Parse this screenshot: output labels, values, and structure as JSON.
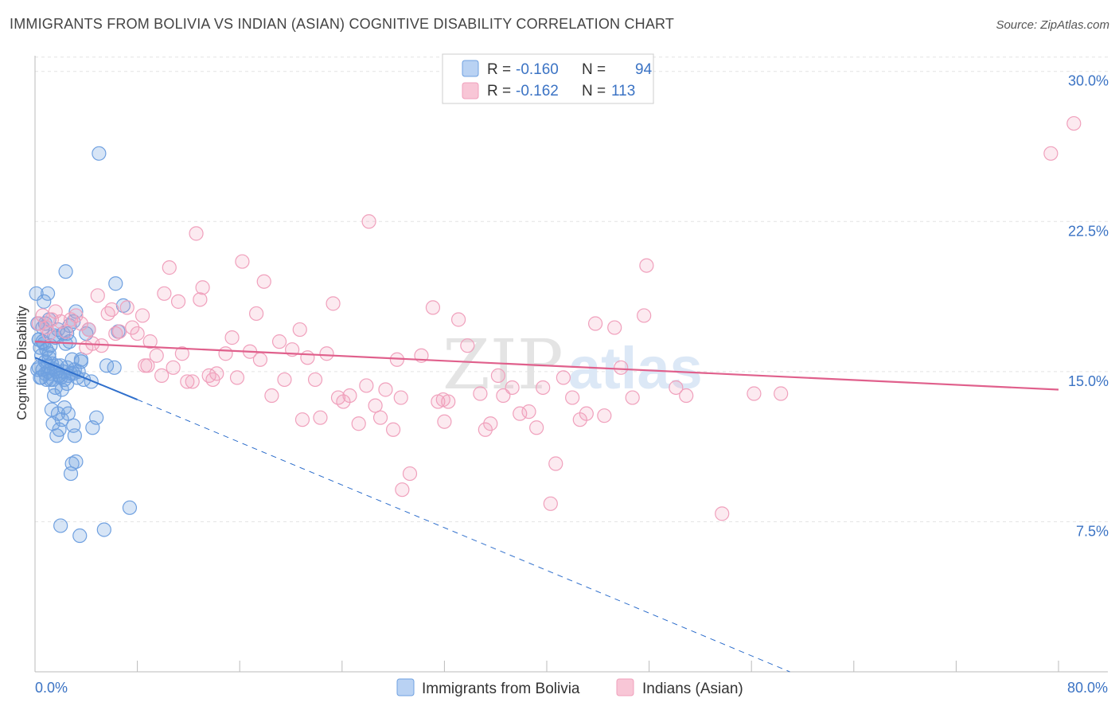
{
  "title": "IMMIGRANTS FROM BOLIVIA VS INDIAN (ASIAN) COGNITIVE DISABILITY CORRELATION CHART",
  "source": "Source: ZipAtlas.com",
  "watermark": {
    "zip": "ZIP",
    "atlas": "atlas"
  },
  "chart_data": {
    "type": "scatter",
    "xlabel": "",
    "ylabel": "Cognitive Disability",
    "xlim": [
      0,
      80
    ],
    "ylim": [
      0,
      31.5
    ],
    "x_tick_labels": [
      "0.0%",
      "80.0%"
    ],
    "y_ticks": [
      7.5,
      15.0,
      22.5,
      30.0
    ],
    "y_tick_labels": [
      "7.5%",
      "15.0%",
      "22.5%",
      "30.0%"
    ],
    "legend": {
      "r_label": "R =",
      "n_label": "N =",
      "entries": [
        {
          "r": "-0.160",
          "n": "94"
        },
        {
          "r": "-0.162",
          "n": "113"
        }
      ]
    },
    "series": [
      {
        "name": "Immigrants from Bolivia",
        "color": "#6fa0e0",
        "line_color": "#2f6fcc",
        "trend": {
          "x0": 0,
          "y0": 15.7,
          "x1": 8,
          "y1": 13.6,
          "dash_x1": 59,
          "dash_y1": 0
        },
        "points": [
          [
            0.1,
            18.9
          ],
          [
            0.2,
            17.4
          ],
          [
            0.3,
            16.6
          ],
          [
            0.3,
            15.2
          ],
          [
            0.4,
            16.2
          ],
          [
            0.5,
            15.8
          ],
          [
            0.5,
            14.7
          ],
          [
            0.6,
            17.2
          ],
          [
            0.6,
            15.1
          ],
          [
            0.7,
            18.5
          ],
          [
            0.7,
            16.4
          ],
          [
            0.8,
            15.5
          ],
          [
            0.8,
            14.9
          ],
          [
            0.9,
            16.1
          ],
          [
            0.9,
            14.6
          ],
          [
            1.0,
            18.9
          ],
          [
            1.0,
            15.3
          ],
          [
            1.1,
            17.6
          ],
          [
            1.1,
            15.7
          ],
          [
            1.2,
            16.3
          ],
          [
            1.2,
            14.9
          ],
          [
            1.3,
            15.4
          ],
          [
            1.3,
            13.1
          ],
          [
            1.4,
            14.6
          ],
          [
            1.4,
            12.4
          ],
          [
            1.5,
            15.1
          ],
          [
            1.5,
            13.8
          ],
          [
            1.6,
            16.7
          ],
          [
            1.6,
            14.2
          ],
          [
            1.7,
            15.0
          ],
          [
            1.7,
            11.8
          ],
          [
            1.8,
            17.1
          ],
          [
            1.8,
            12.9
          ],
          [
            1.9,
            14.8
          ],
          [
            1.9,
            12.1
          ],
          [
            2.0,
            15.3
          ],
          [
            2.0,
            7.3
          ],
          [
            2.1,
            14.1
          ],
          [
            2.1,
            12.6
          ],
          [
            2.2,
            16.9
          ],
          [
            2.2,
            15.0
          ],
          [
            2.3,
            13.2
          ],
          [
            2.3,
            14.6
          ],
          [
            2.4,
            20.0
          ],
          [
            2.4,
            16.4
          ],
          [
            2.5,
            15.2
          ],
          [
            2.5,
            14.4
          ],
          [
            2.6,
            14.8
          ],
          [
            2.6,
            12.9
          ],
          [
            2.7,
            17.3
          ],
          [
            2.7,
            16.5
          ],
          [
            2.8,
            14.9
          ],
          [
            2.8,
            9.9
          ],
          [
            2.9,
            15.6
          ],
          [
            2.9,
            10.4
          ],
          [
            3.0,
            17.5
          ],
          [
            3.0,
            12.3
          ],
          [
            3.1,
            15.1
          ],
          [
            3.1,
            11.8
          ],
          [
            3.2,
            18.0
          ],
          [
            3.2,
            10.5
          ],
          [
            3.3,
            14.7
          ],
          [
            3.4,
            15.0
          ],
          [
            3.5,
            6.8
          ],
          [
            3.6,
            15.5
          ],
          [
            3.8,
            14.6
          ],
          [
            4.0,
            16.9
          ],
          [
            4.2,
            17.1
          ],
          [
            4.4,
            14.5
          ],
          [
            4.5,
            12.2
          ],
          [
            4.8,
            12.7
          ],
          [
            5.0,
            25.9
          ],
          [
            5.4,
            7.1
          ],
          [
            5.6,
            15.3
          ],
          [
            6.2,
            15.2
          ],
          [
            6.3,
            19.4
          ],
          [
            6.5,
            17.0
          ],
          [
            6.9,
            18.3
          ],
          [
            7.4,
            8.2
          ],
          [
            0.4,
            14.7
          ],
          [
            0.6,
            16.5
          ],
          [
            1.0,
            15.0
          ],
          [
            1.5,
            16.8
          ],
          [
            2.0,
            14.7
          ],
          [
            0.2,
            15.1
          ],
          [
            0.3,
            16.6
          ],
          [
            0.8,
            17.4
          ],
          [
            1.2,
            14.6
          ],
          [
            1.7,
            15.3
          ],
          [
            2.5,
            16.9
          ],
          [
            3.0,
            14.9
          ],
          [
            3.6,
            15.6
          ],
          [
            1.9,
            14.8
          ],
          [
            1.1,
            15.9
          ]
        ]
      },
      {
        "name": "Indians (Asian)",
        "color": "#f0a0bc",
        "line_color": "#e0608c",
        "trend": {
          "x0": 0,
          "y0": 16.5,
          "x1": 80,
          "y1": 14.1
        },
        "points": [
          [
            0.3,
            17.4
          ],
          [
            0.6,
            17.8
          ],
          [
            0.9,
            17.2
          ],
          [
            1.1,
            16.9
          ],
          [
            1.3,
            17.6
          ],
          [
            1.6,
            18.0
          ],
          [
            2.0,
            17.5
          ],
          [
            2.4,
            17.0
          ],
          [
            2.8,
            17.6
          ],
          [
            3.2,
            17.8
          ],
          [
            3.6,
            17.4
          ],
          [
            4.0,
            16.2
          ],
          [
            4.2,
            17.1
          ],
          [
            4.5,
            16.4
          ],
          [
            4.9,
            18.8
          ],
          [
            5.2,
            16.3
          ],
          [
            5.7,
            17.9
          ],
          [
            6.0,
            18.1
          ],
          [
            6.3,
            16.9
          ],
          [
            6.6,
            17.0
          ],
          [
            7.2,
            18.2
          ],
          [
            7.6,
            17.2
          ],
          [
            8.0,
            16.9
          ],
          [
            8.4,
            17.8
          ],
          [
            8.8,
            15.3
          ],
          [
            9.0,
            16.5
          ],
          [
            9.5,
            15.8
          ],
          [
            9.9,
            14.8
          ],
          [
            10.1,
            18.9
          ],
          [
            10.5,
            20.2
          ],
          [
            10.8,
            15.2
          ],
          [
            11.2,
            18.5
          ],
          [
            11.5,
            15.9
          ],
          [
            11.9,
            14.5
          ],
          [
            12.3,
            14.5
          ],
          [
            12.6,
            21.9
          ],
          [
            12.9,
            18.6
          ],
          [
            13.1,
            19.2
          ],
          [
            13.6,
            14.8
          ],
          [
            13.9,
            14.6
          ],
          [
            14.2,
            14.9
          ],
          [
            14.9,
            15.9
          ],
          [
            15.4,
            16.7
          ],
          [
            15.8,
            14.7
          ],
          [
            16.2,
            20.5
          ],
          [
            16.8,
            16.0
          ],
          [
            17.3,
            17.9
          ],
          [
            17.6,
            15.6
          ],
          [
            17.9,
            19.5
          ],
          [
            18.5,
            13.8
          ],
          [
            19.1,
            16.5
          ],
          [
            19.5,
            14.6
          ],
          [
            20.1,
            16.1
          ],
          [
            20.7,
            17.1
          ],
          [
            20.9,
            12.6
          ],
          [
            21.3,
            15.7
          ],
          [
            21.9,
            14.6
          ],
          [
            22.3,
            12.7
          ],
          [
            22.8,
            15.9
          ],
          [
            23.3,
            18.4
          ],
          [
            23.7,
            13.7
          ],
          [
            24.1,
            13.5
          ],
          [
            24.6,
            13.8
          ],
          [
            25.3,
            12.4
          ],
          [
            25.9,
            14.3
          ],
          [
            26.1,
            22.5
          ],
          [
            26.6,
            13.3
          ],
          [
            27.0,
            12.7
          ],
          [
            27.4,
            14.1
          ],
          [
            28.0,
            12.1
          ],
          [
            28.3,
            15.6
          ],
          [
            28.6,
            13.7
          ],
          [
            29.3,
            9.9
          ],
          [
            30.2,
            15.8
          ],
          [
            31.1,
            18.2
          ],
          [
            31.5,
            13.5
          ],
          [
            32.0,
            12.5
          ],
          [
            32.3,
            13.5
          ],
          [
            33.1,
            17.6
          ],
          [
            33.8,
            16.3
          ],
          [
            34.8,
            13.9
          ],
          [
            35.2,
            12.1
          ],
          [
            35.6,
            12.4
          ],
          [
            36.2,
            14.8
          ],
          [
            36.6,
            13.8
          ],
          [
            37.3,
            14.2
          ],
          [
            37.9,
            12.9
          ],
          [
            38.6,
            13.0
          ],
          [
            39.2,
            12.2
          ],
          [
            39.7,
            14.2
          ],
          [
            40.3,
            8.4
          ],
          [
            40.7,
            10.4
          ],
          [
            41.3,
            14.7
          ],
          [
            42.0,
            13.7
          ],
          [
            42.6,
            12.6
          ],
          [
            43.1,
            12.9
          ],
          [
            43.8,
            17.4
          ],
          [
            44.5,
            12.8
          ],
          [
            45.3,
            17.2
          ],
          [
            45.8,
            15.2
          ],
          [
            46.7,
            13.7
          ],
          [
            47.6,
            17.8
          ],
          [
            47.8,
            20.3
          ],
          [
            50.1,
            14.2
          ],
          [
            50.9,
            13.8
          ],
          [
            53.7,
            7.9
          ],
          [
            56.2,
            13.9
          ],
          [
            58.3,
            13.9
          ],
          [
            28.7,
            9.1
          ],
          [
            31.9,
            13.6
          ],
          [
            79.4,
            25.9
          ],
          [
            81.2,
            27.4
          ],
          [
            8.6,
            15.3
          ]
        ]
      }
    ]
  }
}
